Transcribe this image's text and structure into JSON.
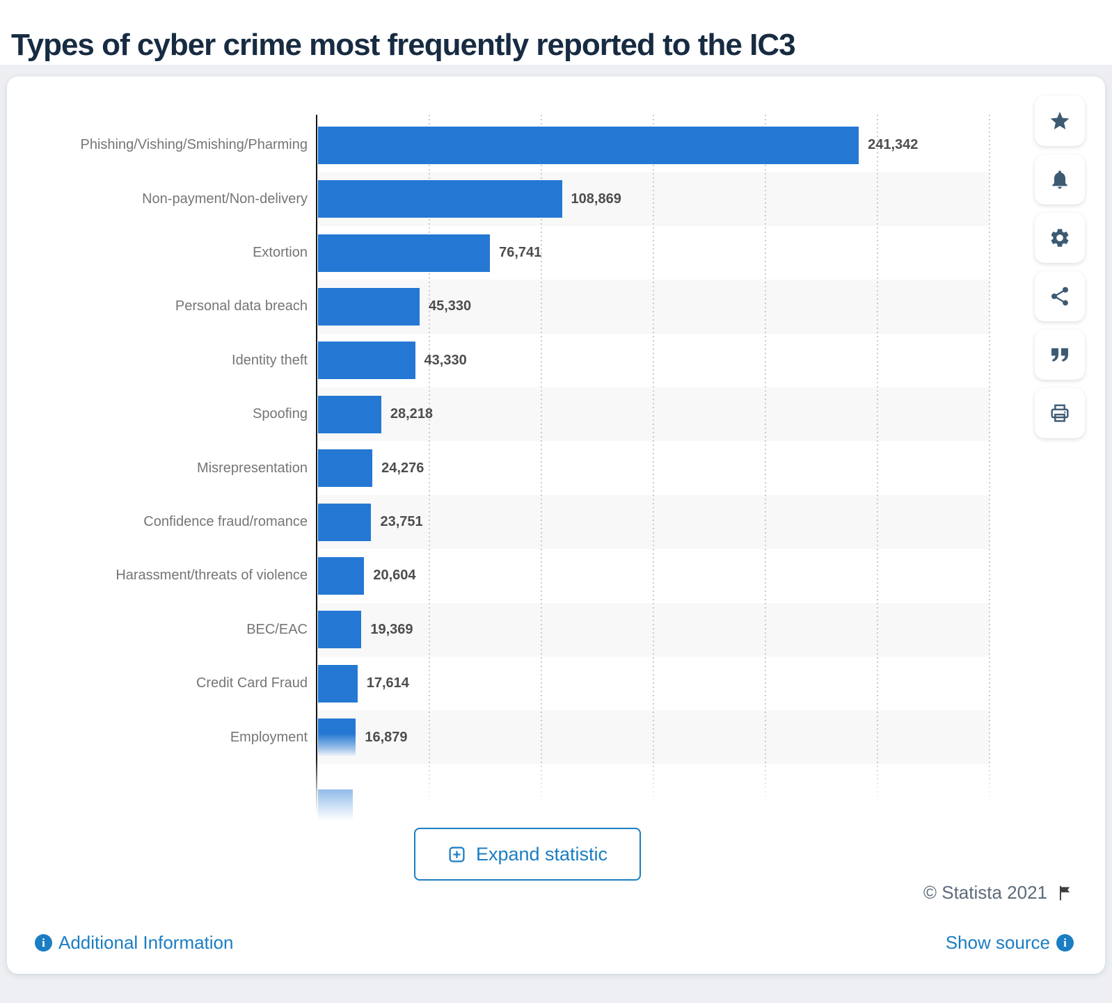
{
  "page": {
    "title": "Types of cyber crime most frequently reported to the IC3"
  },
  "chart_data": {
    "type": "bar",
    "orientation": "horizontal",
    "title": "Types of cyber crime most frequently reported to the IC3",
    "categories": [
      "Phishing/Vishing/Smishing/Pharming",
      "Non-payment/Non-delivery",
      "Extortion",
      "Personal data breach",
      "Identity theft",
      "Spoofing",
      "Misrepresentation",
      "Confidence fraud/romance",
      "Harassment/threats of violence",
      "BEC/EAC",
      "Credit Card Fraud",
      "Employment"
    ],
    "values": [
      241342,
      108869,
      76741,
      45330,
      43330,
      28218,
      24276,
      23751,
      20604,
      19369,
      17614,
      16879
    ],
    "value_labels": [
      "241,342",
      "108,869",
      "76,741",
      "45,330",
      "43,330",
      "28,218",
      "24,276",
      "23,751",
      "20,604",
      "19,369",
      "17,614",
      "16,879"
    ],
    "xlabel": "",
    "ylabel": "",
    "xlim": [
      0,
      300000
    ],
    "gridline_interval": 50000,
    "grid": true,
    "legend": false,
    "row_striping": true,
    "truncated_bottom": true,
    "bar_color": "#2478d3"
  },
  "toolbar": {
    "buttons": [
      {
        "name": "favorite",
        "icon": "star-icon"
      },
      {
        "name": "notifications",
        "icon": "bell-icon"
      },
      {
        "name": "settings",
        "icon": "gear-icon"
      },
      {
        "name": "share",
        "icon": "share-icon"
      },
      {
        "name": "cite",
        "icon": "quote-icon"
      },
      {
        "name": "print",
        "icon": "printer-icon"
      }
    ]
  },
  "actions": {
    "expand_label": "Expand statistic"
  },
  "footer": {
    "copyright": "© Statista 2021",
    "additional_info_label": "Additional Information",
    "show_source_label": "Show source"
  },
  "colors": {
    "bar_blue": "#2478d3",
    "accent_blue": "#1b7dc2",
    "title_navy": "#172b42",
    "category_label_gray": "#757575",
    "value_label_gray": "#4d4d4d",
    "icon_slate": "#3d5a73",
    "copyright_gray": "#5d6b7a",
    "page_background": "#edeff2",
    "row_stripe": "#f8f8f9"
  }
}
